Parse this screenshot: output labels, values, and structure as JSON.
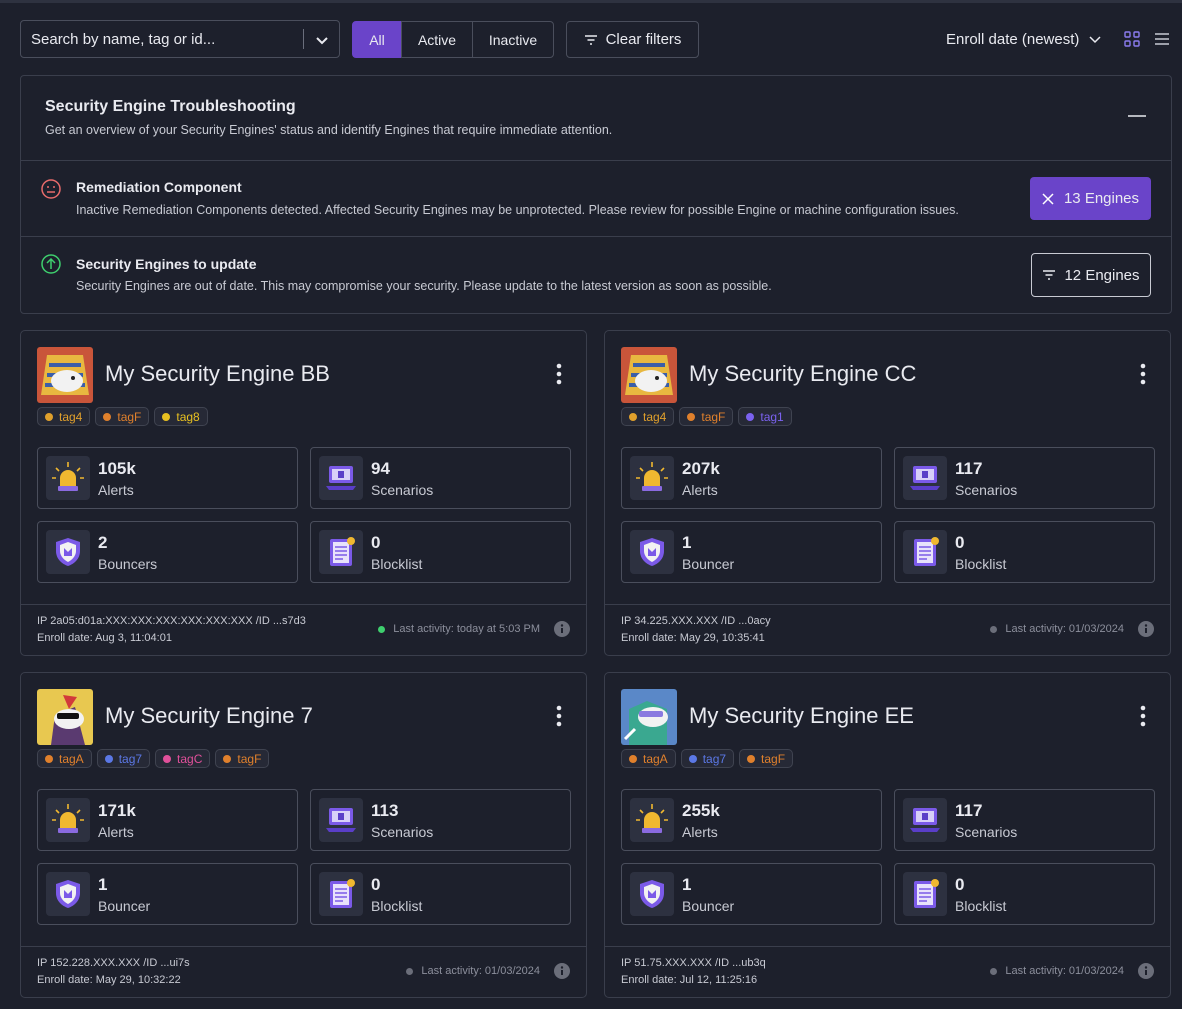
{
  "toolbar": {
    "search_placeholder": "Search by name, tag or id...",
    "filters": [
      "All",
      "Active",
      "Inactive"
    ],
    "clear_filters": "Clear filters",
    "sort": "Enroll date (newest)"
  },
  "troubleshooting": {
    "title": "Security Engine Troubleshooting",
    "subtitle": "Get an overview of your Security Engines' status and identify Engines that require immediate attention.",
    "items": [
      {
        "title": "Remediation Component",
        "description": "Inactive Remediation Components detected. Affected Security Engines may be unprotected. Please review for possible Engine or machine configuration issues.",
        "button": "13 Engines"
      },
      {
        "title": "Security Engines to update",
        "description": "Security Engines are out of date. This may compromise your security. Please update to the latest version as soon as possible.",
        "button": "12 Engines"
      }
    ]
  },
  "engines": [
    {
      "name": "My Security Engine BB",
      "tags": [
        {
          "label": "tag4",
          "color": "#e0a02c"
        },
        {
          "label": "tagF",
          "color": "#e0802c"
        },
        {
          "label": "tag8",
          "color": "#e8c020"
        }
      ],
      "stats": [
        {
          "value": "105k",
          "label": "Alerts"
        },
        {
          "value": "94",
          "label": "Scenarios"
        },
        {
          "value": "2",
          "label": "Bouncers"
        },
        {
          "value": "0",
          "label": "Blocklist"
        }
      ],
      "ip": "IP 2a05:d01a:XXX:XXX:XXX:XXX:XXX:XXX /ID ...s7d3",
      "enroll_date": "Enroll date: Aug 3, 11:04:01",
      "last_activity": "Last activity: today at 5:03 PM",
      "status_color": "#3ecf6e"
    },
    {
      "name": "My Security Engine CC",
      "tags": [
        {
          "label": "tag4",
          "color": "#e0a02c"
        },
        {
          "label": "tagF",
          "color": "#e0802c"
        },
        {
          "label": "tag1",
          "color": "#7b62f0"
        }
      ],
      "stats": [
        {
          "value": "207k",
          "label": "Alerts"
        },
        {
          "value": "117",
          "label": "Scenarios"
        },
        {
          "value": "1",
          "label": "Bouncer"
        },
        {
          "value": "0",
          "label": "Blocklist"
        }
      ],
      "ip": "IP 34.225.XXX.XXX /ID ...0acy",
      "enroll_date": "Enroll date: May 29, 10:35:41",
      "last_activity": "Last activity: 01/03/2024",
      "status_color": "#6b6e7a"
    },
    {
      "name": "My Security Engine 7",
      "tags": [
        {
          "label": "tagA",
          "color": "#e0802c"
        },
        {
          "label": "tag7",
          "color": "#5b78e6"
        },
        {
          "label": "tagC",
          "color": "#e0509a"
        },
        {
          "label": "tagF",
          "color": "#e0802c"
        }
      ],
      "stats": [
        {
          "value": "171k",
          "label": "Alerts"
        },
        {
          "value": "113",
          "label": "Scenarios"
        },
        {
          "value": "1",
          "label": "Bouncer"
        },
        {
          "value": "0",
          "label": "Blocklist"
        }
      ],
      "ip": "IP 152.228.XXX.XXX /ID ...ui7s",
      "enroll_date": "Enroll date: May 29, 10:32:22",
      "last_activity": "Last activity: 01/03/2024",
      "status_color": "#6b6e7a"
    },
    {
      "name": "My Security Engine EE",
      "tags": [
        {
          "label": "tagA",
          "color": "#e0802c"
        },
        {
          "label": "tag7",
          "color": "#5b78e6"
        },
        {
          "label": "tagF",
          "color": "#e0802c"
        }
      ],
      "stats": [
        {
          "value": "255k",
          "label": "Alerts"
        },
        {
          "value": "117",
          "label": "Scenarios"
        },
        {
          "value": "1",
          "label": "Bouncer"
        },
        {
          "value": "0",
          "label": "Blocklist"
        }
      ],
      "ip": "IP 51.75.XXX.XXX /ID ...ub3q",
      "enroll_date": "Enroll date: Jul 12, 11:25:16",
      "last_activity": "Last activity: 01/03/2024",
      "status_color": "#6b6e7a"
    }
  ]
}
